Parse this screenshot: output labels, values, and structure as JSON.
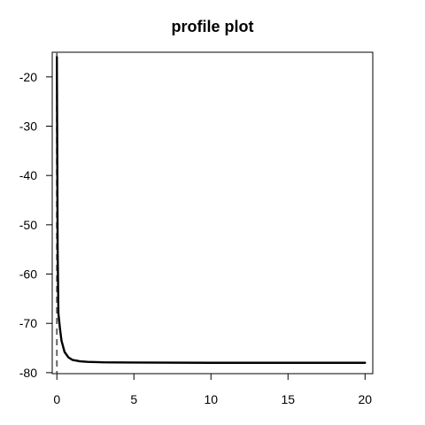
{
  "chart_data": {
    "type": "line",
    "title": "profile plot",
    "xlabel": "",
    "ylabel": "",
    "xlim": [
      -0.3,
      20.5
    ],
    "ylim": [
      -80.2,
      -15
    ],
    "x_ticks": [
      0,
      5,
      10,
      15,
      20
    ],
    "y_ticks": [
      -80,
      -70,
      -60,
      -50,
      -40,
      -30,
      -20
    ],
    "grid": false,
    "series": [
      {
        "style": "solid",
        "color": "#000000",
        "points": [
          [
            0.0,
            -16
          ],
          [
            0.05,
            -55
          ],
          [
            0.1,
            -68
          ],
          [
            0.2,
            -71
          ],
          [
            0.3,
            -73.5
          ],
          [
            0.5,
            -75.8
          ],
          [
            0.75,
            -76.9
          ],
          [
            1.0,
            -77.4
          ],
          [
            1.5,
            -77.7
          ],
          [
            2.0,
            -77.8
          ],
          [
            3.0,
            -77.9
          ],
          [
            5.0,
            -77.95
          ],
          [
            10.0,
            -78.0
          ],
          [
            15.0,
            -78.0
          ],
          [
            20.0,
            -78.0
          ]
        ]
      }
    ],
    "reference_lines": [
      {
        "orientation": "vertical",
        "x": 0,
        "style": "dashed",
        "color": "#666666"
      }
    ]
  }
}
